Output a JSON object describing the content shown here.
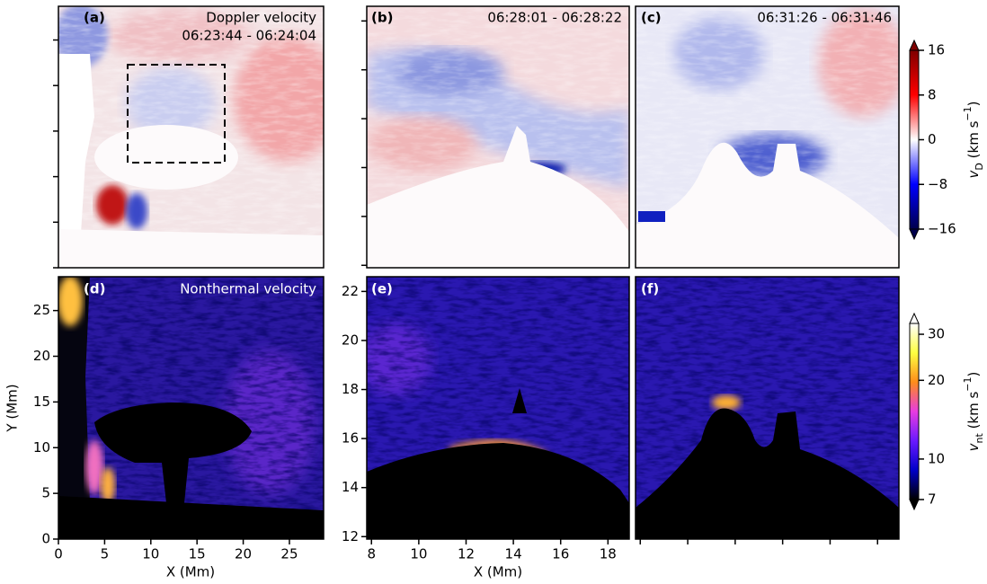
{
  "chart_data": [
    {
      "type": "image",
      "label": "(a)",
      "title": "Doppler velocity",
      "subtitle": "06:23:44 - 06:24:04"
    },
    {
      "type": "image",
      "label": "(b)",
      "subtitle": "06:28:01 - 06:28:22"
    },
    {
      "type": "image",
      "label": "(c)",
      "subtitle": "06:31:26 - 06:31:46"
    },
    {
      "type": "image",
      "label": "(d)",
      "title": "Nonthermal velocity",
      "x_label": "X (Mm)",
      "y_label": "Y (Mm)",
      "xlim": [
        0,
        28.7
      ],
      "ylim": [
        0,
        28.7
      ],
      "xticks": [
        0,
        5,
        10,
        15,
        20,
        25
      ],
      "yticks": [
        0,
        5,
        10,
        15,
        20,
        25
      ]
    },
    {
      "type": "image",
      "label": "(e)",
      "x_label": "X (Mm)",
      "xlim": [
        7.8,
        18.9
      ],
      "ylim": [
        11.9,
        22.6
      ],
      "xticks": [
        8,
        10,
        12,
        14,
        16,
        18
      ],
      "yticks": [
        12,
        14,
        16,
        18,
        20,
        22
      ]
    },
    {
      "type": "image",
      "label": "(f)"
    },
    {
      "type": "colorbar",
      "label": {
        "symbol": "v",
        "sub": "D",
        "unit": " (km s",
        "sup": "−1",
        "close": ")"
      },
      "ylim": [
        -16,
        16
      ],
      "yticks": [
        {
          "value": -16,
          "label": "−16"
        },
        {
          "value": -8,
          "label": "−8"
        },
        0,
        8,
        16
      ],
      "colors": [
        "#00004c",
        "#0000ff",
        "#ffffff",
        "#ff0000",
        "#7f0000"
      ],
      "extend": "both"
    },
    {
      "type": "colorbar",
      "label": {
        "symbol": "v",
        "sub": "nt",
        "unit": " (km s",
        "sup": "−1",
        "close": ")"
      },
      "ylim": [
        7,
        33
      ],
      "yticks": [
        7,
        10,
        20,
        30
      ],
      "log": true,
      "colors": [
        "#000000",
        "#0000c8",
        "#6a1aff",
        "#e83ce0",
        "#ff8c1a",
        "#ffff40",
        "#ffffff"
      ],
      "extend": "both"
    }
  ]
}
